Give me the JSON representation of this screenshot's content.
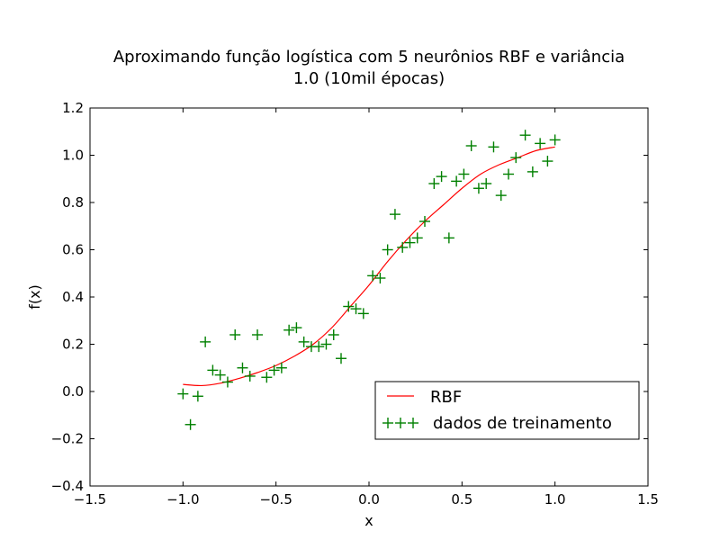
{
  "chart_data": {
    "type": "line",
    "title_lines": [
      "Aproximando função logística com 5 neurônios RBF e variância",
      "1.0 (10mil épocas)"
    ],
    "xlabel": "x",
    "ylabel": "f(x)",
    "xlim": [
      -1.5,
      1.5
    ],
    "ylim": [
      -0.4,
      1.2
    ],
    "xticks": [
      -1.5,
      -1.0,
      -0.5,
      0.0,
      0.5,
      1.0,
      1.5
    ],
    "xtick_labels": [
      "−1.5",
      "−1.0",
      "−0.5",
      "0.0",
      "0.5",
      "1.0",
      "1.5"
    ],
    "yticks": [
      -0.4,
      -0.2,
      0.0,
      0.2,
      0.4,
      0.6,
      0.8,
      1.0,
      1.2
    ],
    "ytick_labels": [
      "−0.4",
      "−0.2",
      "0.0",
      "0.2",
      "0.4",
      "0.6",
      "0.8",
      "1.0",
      "1.2"
    ],
    "grid": false,
    "legend_position": "lower-right",
    "series": [
      {
        "name": "RBF",
        "kind": "line",
        "color": "#ff0000",
        "x": [
          -1.0,
          -0.9,
          -0.8,
          -0.7,
          -0.6,
          -0.5,
          -0.4,
          -0.3,
          -0.2,
          -0.1,
          0.0,
          0.1,
          0.2,
          0.3,
          0.4,
          0.5,
          0.6,
          0.7,
          0.8,
          0.9,
          1.0
        ],
        "y": [
          0.03,
          0.025,
          0.035,
          0.055,
          0.08,
          0.11,
          0.15,
          0.2,
          0.27,
          0.36,
          0.45,
          0.55,
          0.64,
          0.72,
          0.79,
          0.86,
          0.92,
          0.96,
          0.99,
          1.02,
          1.035
        ]
      },
      {
        "name": "dados de treinamento",
        "kind": "scatter",
        "marker": "+",
        "color": "#008000",
        "x": [
          -1.0,
          -0.96,
          -0.92,
          -0.88,
          -0.84,
          -0.8,
          -0.76,
          -0.72,
          -0.68,
          -0.64,
          -0.6,
          -0.55,
          -0.51,
          -0.47,
          -0.43,
          -0.39,
          -0.35,
          -0.31,
          -0.27,
          -0.23,
          -0.19,
          -0.15,
          -0.11,
          -0.07,
          -0.03,
          0.02,
          0.06,
          0.1,
          0.14,
          0.18,
          0.22,
          0.26,
          0.3,
          0.35,
          0.39,
          0.43,
          0.47,
          0.51,
          0.55,
          0.59,
          0.63,
          0.67,
          0.71,
          0.75,
          0.79,
          0.84,
          0.88,
          0.92,
          0.96,
          1.0
        ],
        "y": [
          -0.01,
          -0.14,
          -0.02,
          0.21,
          0.09,
          0.07,
          0.04,
          0.24,
          0.1,
          0.065,
          0.24,
          0.06,
          0.09,
          0.1,
          0.26,
          0.27,
          0.21,
          0.19,
          0.19,
          0.2,
          0.24,
          0.14,
          0.36,
          0.35,
          0.33,
          0.49,
          0.48,
          0.6,
          0.75,
          0.61,
          0.63,
          0.65,
          0.72,
          0.88,
          0.91,
          0.65,
          0.89,
          0.92,
          1.04,
          0.86,
          0.88,
          1.035,
          0.83,
          0.92,
          0.99,
          1.085,
          0.93,
          1.05,
          0.975,
          1.065
        ]
      }
    ]
  }
}
